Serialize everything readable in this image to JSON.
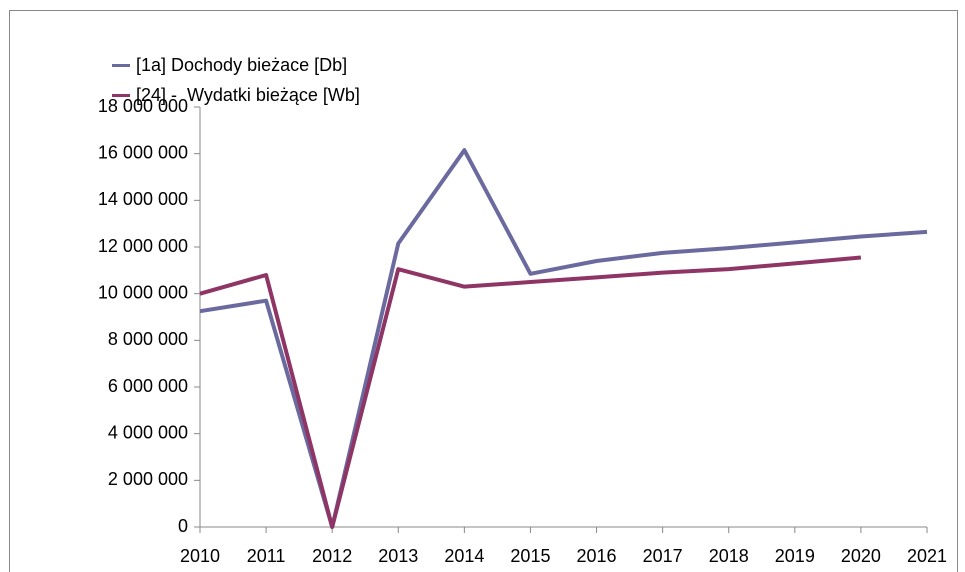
{
  "chart_data": {
    "type": "line",
    "categories": [
      "2010",
      "2011",
      "2012",
      "2013",
      "2014",
      "2015",
      "2016",
      "2017",
      "2018",
      "2019",
      "2020",
      "2021"
    ],
    "series": [
      {
        "name": "[1a] Dochody bieżace [Db]",
        "color": "#6a6a9f",
        "values": [
          9250000,
          9700000,
          0,
          12150000,
          16150000,
          10850000,
          11400000,
          11750000,
          11950000,
          12200000,
          12450000,
          12650000
        ]
      },
      {
        "name": "[24] -  Wydatki bieżące [Wb]",
        "color": "#8e3566",
        "values": [
          10000000,
          10800000,
          0,
          11050000,
          10300000,
          10500000,
          10700000,
          10900000,
          11050000,
          11300000,
          11550000,
          null
        ]
      }
    ],
    "ylim": [
      0,
      18000000
    ],
    "yticks": [
      0,
      {
        "value": 2000000,
        "label": "2 000 000"
      },
      {
        "value": 4000000,
        "label": "4 000 000"
      },
      {
        "value": 6000000,
        "label": "6 000 000"
      },
      {
        "value": 8000000,
        "label": "8 000 000"
      },
      {
        "value": 10000000,
        "label": "10 000 000"
      },
      {
        "value": 12000000,
        "label": "12 000 000"
      },
      {
        "value": 14000000,
        "label": "14 000 000"
      },
      {
        "value": 16000000,
        "label": "16 000 000"
      },
      {
        "value": 18000000,
        "label": "18 000 000"
      }
    ],
    "grid": false,
    "legend": "top-left"
  }
}
